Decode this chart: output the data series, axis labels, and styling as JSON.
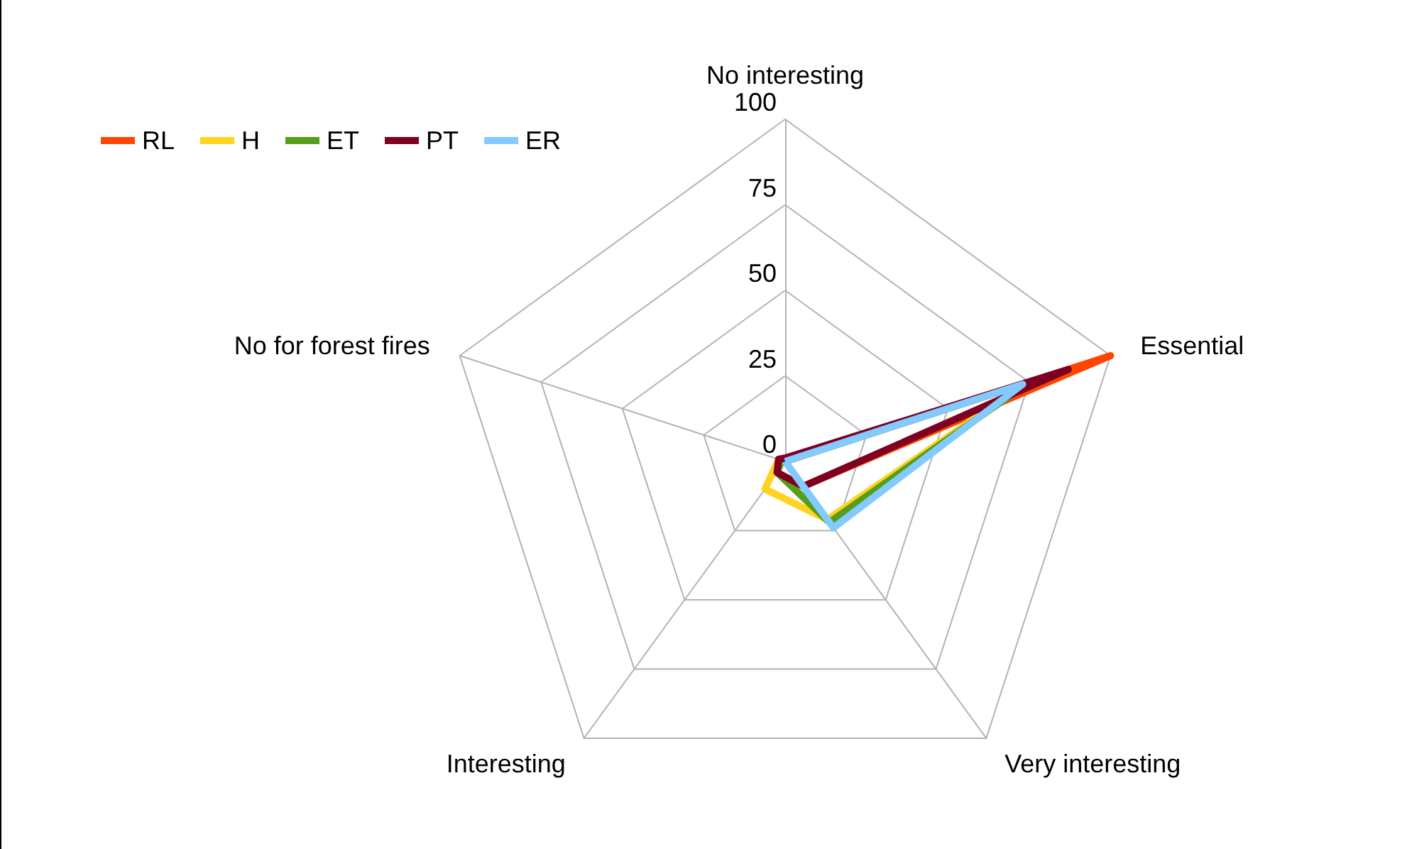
{
  "chart_data": {
    "type": "radar",
    "categories": [
      "No interesting",
      "Essential",
      "Very interesting",
      "Interesting",
      "No for forest fires"
    ],
    "series": [
      {
        "name": "RL",
        "color": "#ff4500",
        "values": [
          0,
          100,
          9,
          4,
          2
        ]
      },
      {
        "name": "H",
        "color": "#ffd320",
        "values": [
          0,
          74,
          21,
          10,
          2
        ]
      },
      {
        "name": "ET",
        "color": "#579d1c",
        "values": [
          0,
          75,
          22,
          4,
          1
        ]
      },
      {
        "name": "PT",
        "color": "#7e0021",
        "values": [
          1,
          87,
          9,
          4,
          2
        ]
      },
      {
        "name": "ER",
        "color": "#83caff",
        "values": [
          0,
          73,
          24,
          0,
          0
        ]
      }
    ],
    "ylim": [
      0,
      100
    ],
    "yticks": [
      0,
      25,
      50,
      75,
      100
    ],
    "grid": true,
    "legend": "top left",
    "marker": "none",
    "line_style": "solid"
  }
}
